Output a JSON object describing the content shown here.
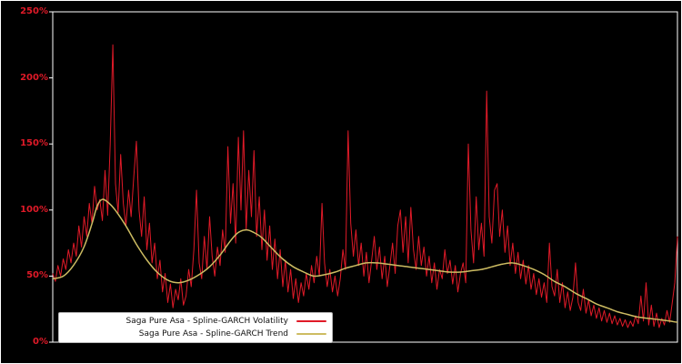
{
  "chart": {
    "y_ticks": [
      "0%",
      "50%",
      "100%",
      "150%",
      "200%",
      "250%"
    ],
    "y_tick_values": [
      0,
      50,
      100,
      150,
      200,
      250
    ],
    "background_color": "#000000",
    "frame_color": "#ffffff",
    "tick_label_color": "#e01a28"
  },
  "legend": {
    "items": [
      {
        "label": "Saga Pure Asa - Spline-GARCH Volatility",
        "color": "#e01a28"
      },
      {
        "label": "Saga Pure Asa - Spline-GARCH Trend",
        "color": "#cdbc62"
      }
    ]
  },
  "chart_data": {
    "type": "line",
    "title": "",
    "xlabel": "",
    "ylabel": "",
    "ylim": [
      0,
      250
    ],
    "y_unit": "%",
    "grid": false,
    "legend_position": "bottom-left",
    "series": [
      {
        "name": "Saga Pure Asa - Spline-GARCH Volatility",
        "color": "#e01a28",
        "width": 1,
        "smooth": false,
        "values": [
          52,
          46,
          58,
          50,
          63,
          55,
          70,
          60,
          75,
          65,
          88,
          72,
          95,
          80,
          105,
          90,
          118,
          100,
          108,
          92,
          130,
          96,
          150,
          225,
          120,
          98,
          142,
          105,
          88,
          115,
          95,
          125,
          152,
          100,
          80,
          110,
          70,
          90,
          60,
          75,
          48,
          62,
          38,
          52,
          30,
          44,
          26,
          40,
          32,
          48,
          28,
          35,
          55,
          42,
          70,
          115,
          60,
          48,
          80,
          55,
          95,
          65,
          50,
          72,
          58,
          85,
          68,
          148,
          90,
          120,
          75,
          155,
          100,
          160,
          85,
          130,
          95,
          145,
          80,
          110,
          70,
          100,
          62,
          88,
          55,
          78,
          48,
          70,
          42,
          62,
          38,
          55,
          33,
          48,
          30,
          45,
          35,
          52,
          40,
          58,
          45,
          65,
          50,
          105,
          60,
          42,
          55,
          38,
          50,
          35,
          48,
          70,
          55,
          160,
          90,
          65,
          85,
          58,
          75,
          50,
          68,
          45,
          62,
          80,
          55,
          72,
          48,
          65,
          42,
          58,
          75,
          52,
          88,
          100,
          68,
          95,
          60,
          102,
          70,
          55,
          80,
          58,
          72,
          50,
          65,
          45,
          60,
          40,
          55,
          48,
          70,
          52,
          62,
          44,
          58,
          38,
          52,
          60,
          45,
          150,
          85,
          60,
          110,
          70,
          90,
          65,
          190,
          95,
          75,
          115,
          120,
          80,
          100,
          68,
          88,
          58,
          75,
          52,
          68,
          48,
          62,
          44,
          58,
          40,
          52,
          36,
          48,
          34,
          45,
          30,
          75,
          42,
          35,
          55,
          30,
          45,
          26,
          38,
          24,
          34,
          60,
          30,
          24,
          40,
          22,
          32,
          20,
          28,
          18,
          26,
          16,
          24,
          15,
          22,
          14,
          20,
          13,
          18,
          12,
          17,
          11,
          16,
          12,
          20,
          14,
          35,
          16,
          45,
          13,
          28,
          12,
          22,
          11,
          18,
          13,
          24,
          15,
          30,
          45,
          80
        ]
      },
      {
        "name": "Saga Pure Asa - Spline-GARCH Trend",
        "color": "#cdbc62",
        "width": 1.5,
        "smooth": true,
        "x": [
          0,
          0.017,
          0.033,
          0.05,
          0.063,
          0.071,
          0.079,
          0.088,
          0.1,
          0.117,
          0.134,
          0.151,
          0.167,
          0.184,
          0.201,
          0.218,
          0.234,
          0.251,
          0.268,
          0.285,
          0.297,
          0.31,
          0.322,
          0.335,
          0.351,
          0.368,
          0.385,
          0.402,
          0.418,
          0.435,
          0.452,
          0.469,
          0.485,
          0.502,
          0.519,
          0.536,
          0.552,
          0.569,
          0.586,
          0.602,
          0.619,
          0.636,
          0.653,
          0.669,
          0.686,
          0.703,
          0.72,
          0.736,
          0.753,
          0.77,
          0.787,
          0.803,
          0.82,
          0.837,
          0.854,
          0.87,
          0.887,
          0.904,
          0.92,
          0.937,
          0.954,
          0.971,
          0.987,
          1.0
        ],
        "values": [
          48,
          50,
          58,
          72,
          90,
          103,
          108,
          106,
          100,
          88,
          74,
          62,
          53,
          47,
          45,
          47,
          51,
          57,
          66,
          77,
          83,
          85,
          83,
          79,
          71,
          63,
          57,
          53,
          50,
          51,
          53,
          56,
          58,
          60,
          60,
          59,
          58,
          57,
          56,
          55,
          54,
          53,
          53,
          54,
          55,
          57,
          59,
          60,
          58,
          55,
          51,
          46,
          42,
          37,
          33,
          29,
          26,
          23,
          21,
          19,
          18,
          17,
          16,
          15
        ]
      }
    ]
  }
}
